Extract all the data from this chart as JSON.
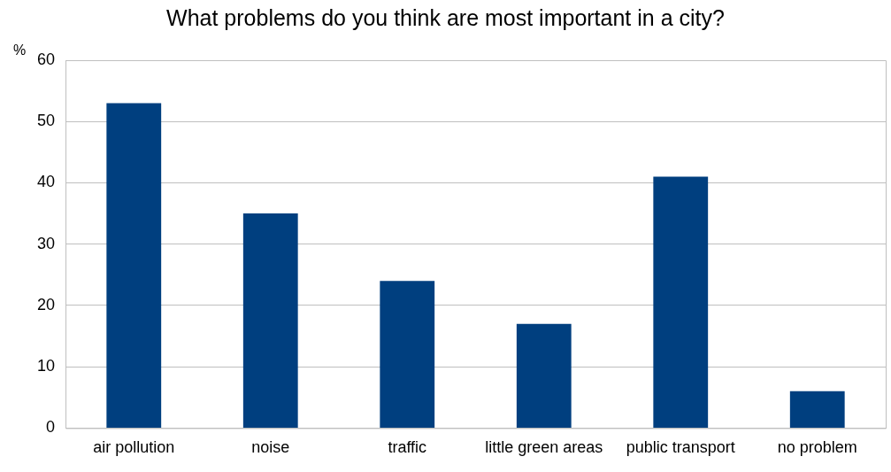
{
  "chart_data": {
    "type": "bar",
    "title": "What problems do you think are most important in a city?",
    "ylabel": "%",
    "categories": [
      "air pollution",
      "noise",
      "traffic",
      "little green areas",
      "public transport",
      "no problem"
    ],
    "values": [
      53,
      35,
      24,
      17,
      41,
      6
    ],
    "color": "#003f7f",
    "ylim": [
      0,
      60
    ],
    "yticks": [
      0,
      10,
      20,
      30,
      40,
      50,
      60
    ],
    "grid": "y",
    "legend": false
  }
}
